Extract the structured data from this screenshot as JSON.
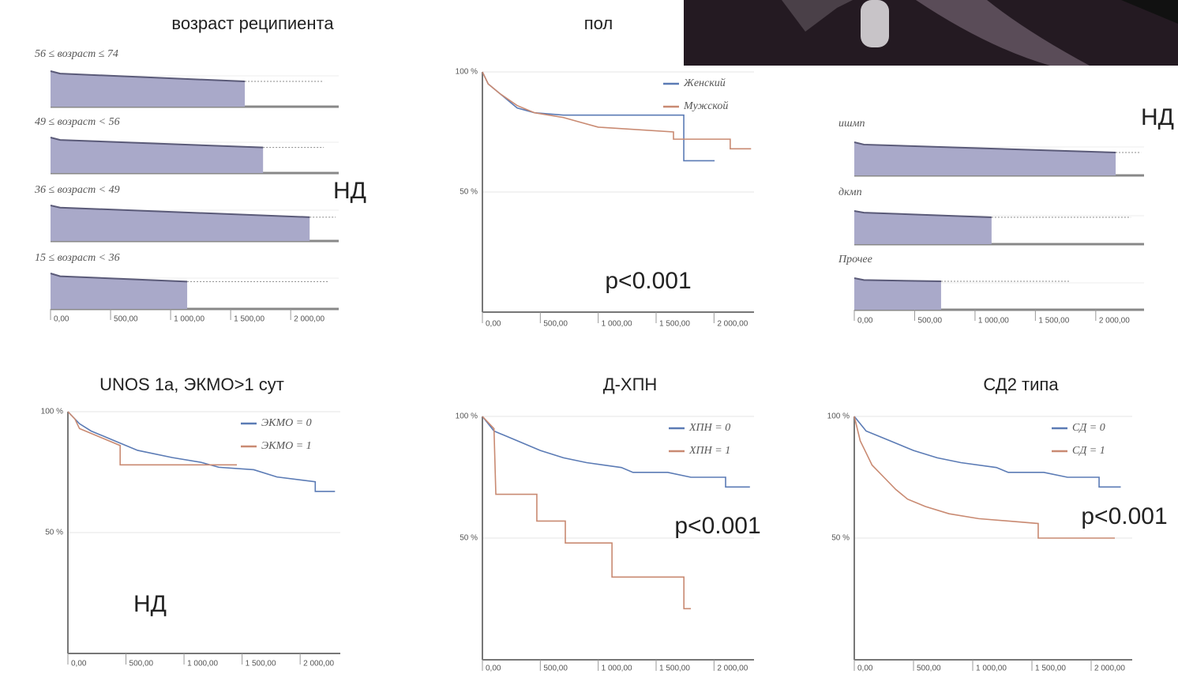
{
  "chart_data": [
    {
      "type": "km-bars",
      "title": "возраст реципиента",
      "annotation": "НД",
      "color": "#a9a9c9",
      "line_color": "#5a5a78",
      "xlim": [
        0,
        2400
      ],
      "ylim": [
        0,
        100
      ],
      "xticks": [
        {
          "value": 0,
          "label": "0,00"
        },
        {
          "value": 500,
          "label": "500,00"
        },
        {
          "value": 1000,
          "label": "1 000,00"
        },
        {
          "value": 1500,
          "label": "1 500,00"
        },
        {
          "value": 2000,
          "label": "2 000,00"
        }
      ],
      "panels": [
        {
          "label": "56 ≤ возраст ≤ 74",
          "x": [
            0,
            80,
            1618
          ],
          "values": [
            100,
            93,
            71
          ],
          "censored_to": 2276
        },
        {
          "label": "49 ≤ возраст < 56",
          "x": [
            0,
            80,
            1770
          ],
          "values": [
            100,
            93,
            72
          ],
          "censored_to": 2276
        },
        {
          "label": "36 ≤ возраст < 49",
          "x": [
            0,
            80,
            2158
          ],
          "values": [
            100,
            94,
            67
          ],
          "censored_to": 2375
        },
        {
          "label": "15 ≤ возраст < 36",
          "x": [
            0,
            80,
            1138
          ],
          "values": [
            100,
            92,
            77
          ],
          "censored_to": 2309
        }
      ]
    },
    {
      "type": "line",
      "title": "пол",
      "annotation": "p<0.001",
      "xlim": [
        0,
        2400
      ],
      "ylim": [
        0,
        100
      ],
      "xticks": [
        {
          "value": 0,
          "label": "0,00"
        },
        {
          "value": 500,
          "label": "500,00"
        },
        {
          "value": 1000,
          "label": "1 000,00"
        },
        {
          "value": 1500,
          "label": "1 500,00"
        },
        {
          "value": 2000,
          "label": "2 000,00"
        }
      ],
      "yticks": [
        {
          "value": 100,
          "label": "100 %"
        },
        {
          "value": 50,
          "label": "50 %"
        }
      ],
      "series": [
        {
          "name": "Женский",
          "color": "#5b7bb5",
          "x": [
            0,
            50,
            150,
            300,
            450,
            700,
            1739,
            1739,
            2005
          ],
          "values": [
            100,
            95,
            91,
            85,
            83,
            82,
            82,
            63,
            63
          ]
        },
        {
          "name": "Мужской",
          "color": "#c98a72",
          "x": [
            0,
            50,
            150,
            300,
            450,
            700,
            850,
            1000,
            1650,
            1650,
            2140,
            2140,
            2320
          ],
          "values": [
            100,
            95,
            91,
            86,
            83,
            81,
            79,
            77,
            75,
            72,
            72,
            68,
            68
          ]
        }
      ]
    },
    {
      "type": "km-bars",
      "annotation": "НД",
      "color": "#a9a9c9",
      "line_color": "#5a5a78",
      "xlim": [
        0,
        2400
      ],
      "ylim": [
        0,
        100
      ],
      "xticks": [
        {
          "value": 0,
          "label": "0,00"
        },
        {
          "value": 500,
          "label": "500,00"
        },
        {
          "value": 1000,
          "label": "1 000,00"
        },
        {
          "value": 1500,
          "label": "1 500,00"
        },
        {
          "value": 2000,
          "label": "2 000,00"
        }
      ],
      "panels": [
        {
          "label": "ишмп",
          "x": [
            0,
            80,
            2165
          ],
          "values": [
            100,
            93,
            69
          ],
          "censored_to": 2375
        },
        {
          "label": "дкмп",
          "x": [
            0,
            80,
            1137
          ],
          "values": [
            100,
            95,
            81
          ],
          "censored_to": 2290
        },
        {
          "label": "Прочее",
          "x": [
            0,
            80,
            719
          ],
          "values": [
            100,
            94,
            90
          ],
          "censored_to": 1785
        }
      ]
    },
    {
      "type": "line",
      "title": "UNOS 1a, ЭКМО>1 сут",
      "annotation": "НД",
      "xlim": [
        0,
        2400
      ],
      "ylim": [
        0,
        100
      ],
      "xticks": [
        {
          "value": 0,
          "label": "0,00"
        },
        {
          "value": 500,
          "label": "500,00"
        },
        {
          "value": 1000,
          "label": "1 000,00"
        },
        {
          "value": 1500,
          "label": "1 500,00"
        },
        {
          "value": 2000,
          "label": "2 000,00"
        }
      ],
      "yticks": [
        {
          "value": 100,
          "label": "100 %"
        },
        {
          "value": 50,
          "label": "50 %"
        }
      ],
      "series": [
        {
          "name": "ЭКМО = 0",
          "color": "#5b7bb5",
          "x": [
            0,
            100,
            200,
            400,
            600,
            900,
            1150,
            1300,
            1600,
            1800,
            2130,
            2130,
            2300
          ],
          "values": [
            100,
            95,
            92,
            88,
            84,
            81,
            79,
            77,
            76,
            73,
            71,
            67,
            67
          ]
        },
        {
          "name": "ЭКМО = 1",
          "color": "#c98a72",
          "x": [
            0,
            60,
            100,
            300,
            450,
            450,
            1455
          ],
          "values": [
            100,
            97,
            93,
            89,
            86,
            78,
            78
          ]
        }
      ]
    },
    {
      "type": "line",
      "title": "Д-ХПН",
      "annotation": "p<0.001",
      "xlim": [
        0,
        2400
      ],
      "ylim": [
        0,
        100
      ],
      "xticks": [
        {
          "value": 0,
          "label": "0,00"
        },
        {
          "value": 500,
          "label": "500,00"
        },
        {
          "value": 1000,
          "label": "1 000,00"
        },
        {
          "value": 1500,
          "label": "1 500,00"
        },
        {
          "value": 2000,
          "label": "2 000,00"
        }
      ],
      "yticks": [
        {
          "value": 100,
          "label": "100 %"
        },
        {
          "value": 50,
          "label": "50 %"
        }
      ],
      "series": [
        {
          "name": "ХПН = 0",
          "color": "#5b7bb5",
          "x": [
            0,
            100,
            300,
            500,
            700,
            900,
            1200,
            1300,
            1600,
            1800,
            2100,
            2100,
            2310
          ],
          "values": [
            100,
            94,
            90,
            86,
            83,
            81,
            79,
            77,
            77,
            75,
            75,
            71,
            71
          ]
        },
        {
          "name": "ХПН = 1",
          "color": "#c98a72",
          "x": [
            0,
            100,
            116,
            470,
            470,
            716,
            716,
            1119,
            1119,
            1740,
            1740,
            1800
          ],
          "values": [
            100,
            95,
            68,
            68,
            57,
            57,
            48,
            48,
            34,
            34,
            21,
            21
          ]
        }
      ]
    },
    {
      "type": "line",
      "title": "СД2 типа",
      "annotation": "p<0.001",
      "xlim": [
        0,
        2400
      ],
      "ylim": [
        0,
        100
      ],
      "xticks": [
        {
          "value": 0,
          "label": "0,00"
        },
        {
          "value": 500,
          "label": "500,00"
        },
        {
          "value": 1000,
          "label": "1 000,00"
        },
        {
          "value": 1500,
          "label": "1 500,00"
        },
        {
          "value": 2000,
          "label": "2 000,00"
        }
      ],
      "yticks": [
        {
          "value": 100,
          "label": "100 %"
        },
        {
          "value": 50,
          "label": "50 %"
        }
      ],
      "series": [
        {
          "name": "СД = 0",
          "color": "#5b7bb5",
          "x": [
            0,
            100,
            300,
            500,
            700,
            900,
            1200,
            1300,
            1600,
            1800,
            2067,
            2067,
            2250
          ],
          "values": [
            100,
            94,
            90,
            86,
            83,
            81,
            79,
            77,
            77,
            75,
            75,
            71,
            71
          ]
        },
        {
          "name": "СД = 1",
          "color": "#c98a72",
          "x": [
            0,
            50,
            100,
            150,
            250,
            350,
            450,
            600,
            800,
            1050,
            1553,
            1553,
            2200
          ],
          "values": [
            100,
            90,
            85,
            80,
            75,
            70,
            66,
            63,
            60,
            58,
            56,
            50,
            50
          ]
        }
      ]
    }
  ]
}
